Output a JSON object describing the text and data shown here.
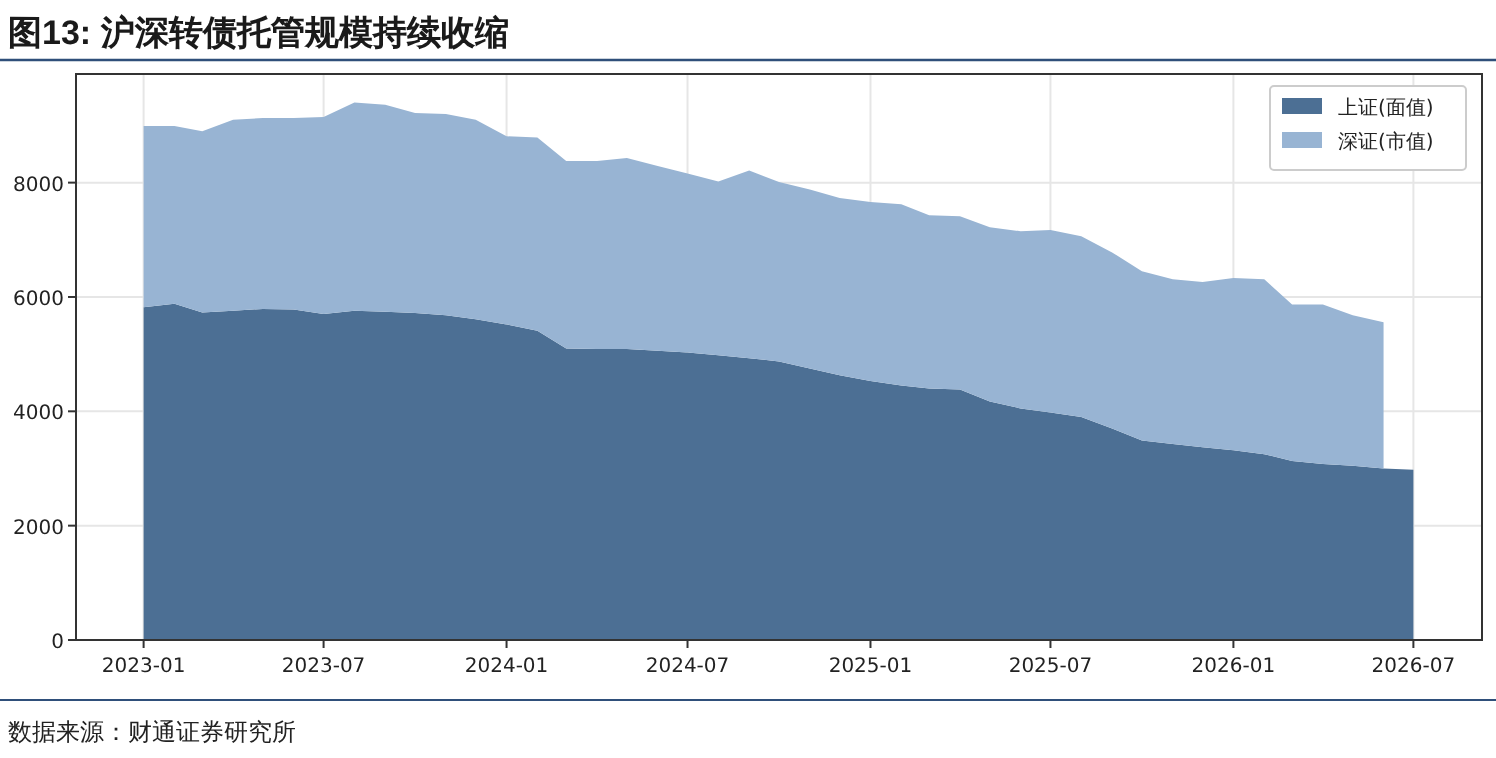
{
  "chart_data": {
    "type": "area",
    "stacked": true,
    "title": "图13: 沪深转债托管规模持续收缩",
    "annotations": [
      "数据来源：财通证券研究所"
    ],
    "x": [
      "2023-01",
      "2023-02",
      "2023-03",
      "2023-04",
      "2023-05",
      "2023-06",
      "2023-07",
      "2023-08",
      "2023-09",
      "2023-10",
      "2023-11",
      "2023-12",
      "2024-01",
      "2024-02",
      "2024-03",
      "2024-04",
      "2024-05",
      "2024-06",
      "2024-07",
      "2024-08",
      "2024-09",
      "2024-10",
      "2024-11",
      "2024-12",
      "2025-01",
      "2025-02",
      "2025-03",
      "2025-04",
      "2025-05",
      "2025-06",
      "2025-07",
      "2025-08",
      "2025-09",
      "2025-10",
      "2025-11",
      "2025-12",
      "2026-01",
      "2026-02",
      "2026-03",
      "2026-04",
      "2026-05",
      "2026-06",
      "2026-07"
    ],
    "series": [
      {
        "name": "上证(面值)",
        "color": "#4c6f94",
        "values": [
          5820,
          5880,
          5730,
          5760,
          5790,
          5780,
          5700,
          5760,
          5740,
          5720,
          5680,
          5610,
          5520,
          5410,
          5100,
          5090,
          5090,
          5060,
          5030,
          4980,
          4930,
          4870,
          4750,
          4630,
          4530,
          4450,
          4400,
          4380,
          4170,
          4050,
          3980,
          3900,
          3700,
          3490,
          3430,
          3370,
          3320,
          3250,
          3130,
          3080,
          3050,
          3000,
          2980
        ]
      },
      {
        "name": "深证(市值)",
        "color": "#98b4d3",
        "values": [
          3170,
          3110,
          3170,
          3340,
          3340,
          3350,
          3450,
          3640,
          3620,
          3500,
          3520,
          3490,
          3290,
          3380,
          3280,
          3290,
          3340,
          3230,
          3130,
          3040,
          3280,
          3140,
          3130,
          3100,
          3130,
          3170,
          3030,
          3030,
          3050,
          3100,
          3190,
          3160,
          3080,
          2960,
          2880,
          2890,
          3010,
          3060,
          2740,
          2790,
          2630,
          2560,
          null
        ]
      }
    ],
    "xlim": [
      "2022-10-25",
      "2026-09-08"
    ],
    "xticks": [
      {
        "value": "2023-01",
        "label": "2023-01"
      },
      {
        "value": "2023-07",
        "label": "2023-07"
      },
      {
        "value": "2024-01",
        "label": "2024-01"
      },
      {
        "value": "2024-07",
        "label": "2024-07"
      },
      {
        "value": "2025-01",
        "label": "2025-01"
      },
      {
        "value": "2025-07",
        "label": "2025-07"
      },
      {
        "value": "2026-01",
        "label": "2026-01"
      },
      {
        "value": "2026-07",
        "label": "2026-07"
      }
    ],
    "ylim": [
      0,
      9900
    ],
    "yticks": [
      0,
      2000,
      4000,
      6000,
      8000
    ],
    "grid": true,
    "legend": "top right"
  }
}
